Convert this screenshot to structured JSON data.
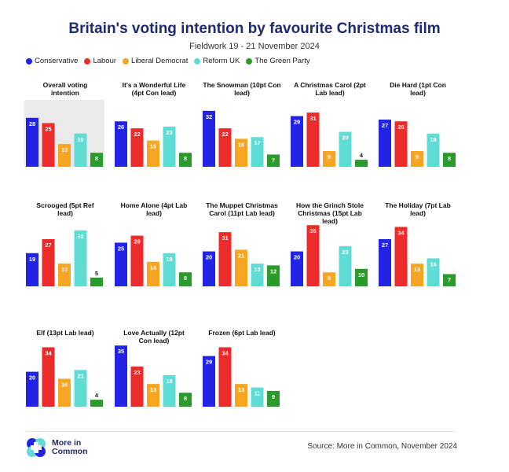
{
  "title": "Britain's voting intention by favourite Christmas film",
  "subtitle": "Fieldwork 19 - 21 November 2024",
  "legend": [
    {
      "name": "Conservative",
      "color": "#2323e6"
    },
    {
      "name": "Labour",
      "color": "#ee2b2b"
    },
    {
      "name": "Liberal Democrat",
      "color": "#f6a623"
    },
    {
      "name": "Reform UK",
      "color": "#5fdcd4"
    },
    {
      "name": "The Green Party",
      "color": "#2a9a2a"
    }
  ],
  "chart_data": {
    "type": "bar",
    "series_names": [
      "Conservative",
      "Labour",
      "Liberal Democrat",
      "Reform UK",
      "The Green Party"
    ],
    "colors": [
      "#2323e6",
      "#ee2b2b",
      "#f6a623",
      "#5fdcd4",
      "#2a9a2a"
    ],
    "ylim": [
      0,
      36
    ],
    "panels": [
      {
        "title": "Overall voting intention",
        "values": [
          28,
          25,
          13,
          19,
          8
        ],
        "highlight": true
      },
      {
        "title": "It's a Wonderful Life (4pt Con lead)",
        "values": [
          26,
          22,
          15,
          23,
          8
        ]
      },
      {
        "title": "The Snowman (10pt Con lead)",
        "values": [
          32,
          22,
          16,
          17,
          7
        ]
      },
      {
        "title": "A Christmas Carol (2pt Lab lead)",
        "values": [
          29,
          31,
          9,
          20,
          4
        ]
      },
      {
        "title": "Die Hard (1pt Con lead)",
        "values": [
          27,
          26,
          9,
          19,
          8
        ]
      },
      {
        "title": "Scrooged (5pt Ref lead)",
        "values": [
          19,
          27,
          13,
          32,
          5
        ]
      },
      {
        "title": "Home Alone (4pt Lab lead)",
        "values": [
          25,
          29,
          14,
          19,
          8
        ]
      },
      {
        "title": "The Muppet Christmas Carol (11pt Lab lead)",
        "values": [
          20,
          31,
          21,
          13,
          12
        ]
      },
      {
        "title": "How the Grinch Stole Christmas (15pt Lab lead)",
        "values": [
          20,
          35,
          8,
          23,
          10
        ]
      },
      {
        "title": "The Holiday (7pt Lab lead)",
        "values": [
          27,
          34,
          13,
          16,
          7
        ]
      },
      {
        "title": "Elf (13pt Lab lead)",
        "values": [
          20,
          34,
          16,
          21,
          4
        ]
      },
      {
        "title": "Love Actually (12pt Con lead)",
        "values": [
          35,
          23,
          13,
          18,
          8
        ]
      },
      {
        "title": "Frozen (6pt Lab lead)",
        "values": [
          29,
          34,
          13,
          11,
          9
        ]
      }
    ]
  },
  "brand": {
    "name_line1": "More in",
    "name_line2": "Common"
  },
  "source": "Source: More in Common, November 2024"
}
